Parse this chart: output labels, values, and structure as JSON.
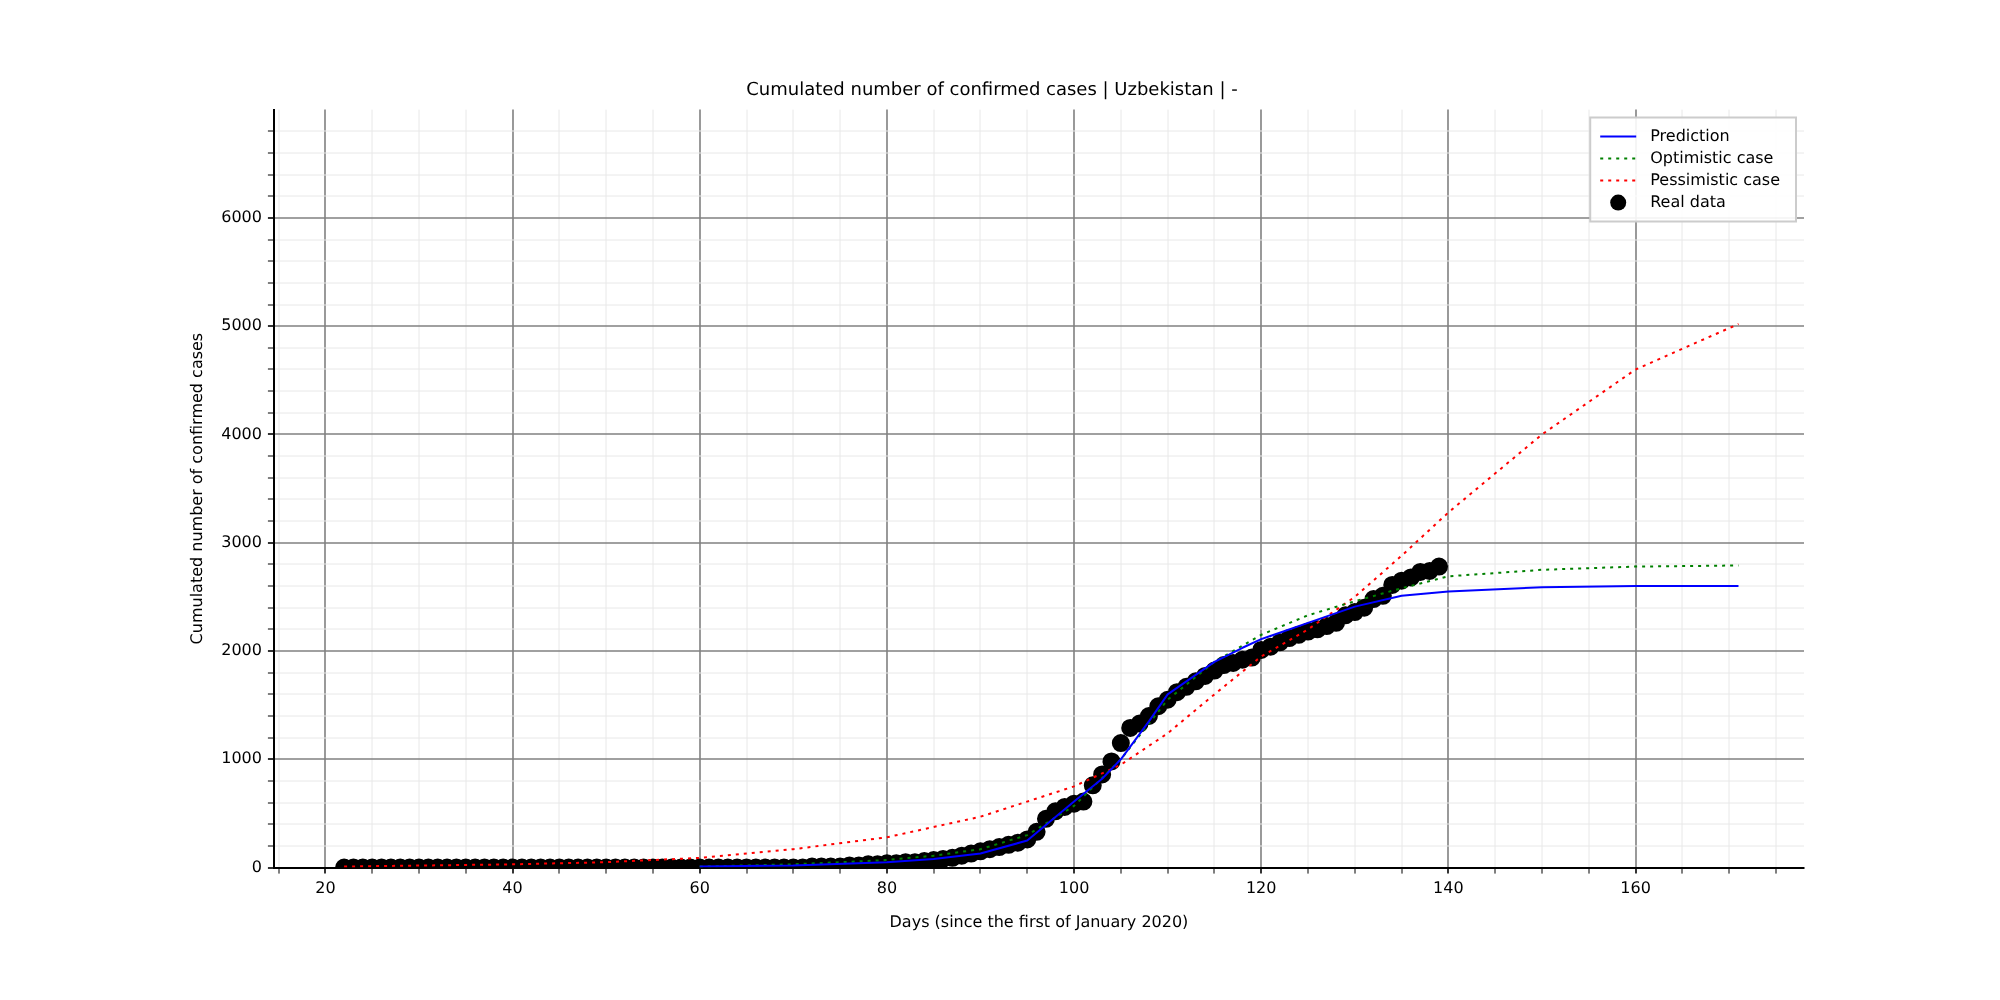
{
  "chart_data": {
    "type": "line",
    "title": "Cumulated number of confirmed cases | Uzbekistan | -",
    "xlabel": "Days (since the first of January 2020)",
    "ylabel": "Cumulated number of confirmed cases",
    "xlim": [
      14.5,
      178
    ],
    "ylim": [
      0,
      7000
    ],
    "xticks": [
      {
        "value": 15,
        "label": null
      },
      20,
      {
        "value": 25,
        "label": null
      },
      {
        "value": 30,
        "label": null
      },
      {
        "value": 35,
        "label": null
      },
      40,
      {
        "value": 45,
        "label": null
      },
      {
        "value": 50,
        "label": null
      },
      {
        "value": 55,
        "label": null
      },
      60,
      {
        "value": 65,
        "label": null
      },
      {
        "value": 70,
        "label": null
      },
      {
        "value": 75,
        "label": null
      },
      80,
      {
        "value": 85,
        "label": null
      },
      {
        "value": 90,
        "label": null
      },
      {
        "value": 95,
        "label": null
      },
      100,
      {
        "value": 105,
        "label": null
      },
      {
        "value": 110,
        "label": null
      },
      {
        "value": 115,
        "label": null
      },
      120,
      {
        "value": 125,
        "label": null
      },
      {
        "value": 130,
        "label": null
      },
      {
        "value": 135,
        "label": null
      },
      140,
      {
        "value": 145,
        "label": null
      },
      {
        "value": 150,
        "label": null
      },
      {
        "value": 155,
        "label": null
      },
      160,
      {
        "value": 165,
        "label": null
      },
      {
        "value": 170,
        "label": null
      },
      {
        "value": 175,
        "label": null
      }
    ],
    "yticks": [
      0,
      {
        "value": 200,
        "label": null
      },
      {
        "value": 400,
        "label": null
      },
      {
        "value": 600,
        "label": null
      },
      {
        "value": 800,
        "label": null
      },
      1000,
      {
        "value": 1200,
        "label": null
      },
      {
        "value": 1400,
        "label": null
      },
      {
        "value": 1600,
        "label": null
      },
      {
        "value": 1800,
        "label": null
      },
      2000,
      {
        "value": 2200,
        "label": null
      },
      {
        "value": 2400,
        "label": null
      },
      {
        "value": 2600,
        "label": null
      },
      {
        "value": 2800,
        "label": null
      },
      3000,
      {
        "value": 3200,
        "label": null
      },
      {
        "value": 3400,
        "label": null
      },
      {
        "value": 3600,
        "label": null
      },
      {
        "value": 3800,
        "label": null
      },
      4000,
      {
        "value": 4200,
        "label": null
      },
      {
        "value": 4400,
        "label": null
      },
      {
        "value": 4600,
        "label": null
      },
      {
        "value": 4800,
        "label": null
      },
      5000,
      {
        "value": 5200,
        "label": null
      },
      {
        "value": 5400,
        "label": null
      },
      {
        "value": 5600,
        "label": null
      },
      {
        "value": 5800,
        "label": null
      },
      6000,
      {
        "value": 6200,
        "label": null
      },
      {
        "value": 6400,
        "label": null
      },
      {
        "value": 6600,
        "label": null
      },
      {
        "value": 6800,
        "label": null
      }
    ],
    "grid": true,
    "legend": "top right",
    "series": [
      {
        "name": "Prediction",
        "type": "line",
        "color": "#0000ff",
        "line_style": "solid",
        "marker": "none",
        "x": [
          60,
          70,
          80,
          85,
          90,
          95,
          100,
          103,
          105,
          108,
          110,
          113,
          115,
          118,
          120,
          125,
          130,
          135,
          140,
          150,
          160,
          171
        ],
        "values": [
          10,
          20,
          50,
          80,
          130,
          250,
          610,
          820,
          1000,
          1350,
          1600,
          1780,
          1900,
          2030,
          2110,
          2260,
          2410,
          2510,
          2550,
          2590,
          2600,
          2600
        ]
      },
      {
        "name": "Optimistic case",
        "type": "line",
        "color": "#008000",
        "line_style": "dotted",
        "marker": "none",
        "x": [
          60,
          70,
          80,
          85,
          90,
          95,
          100,
          105,
          110,
          115,
          120,
          125,
          130,
          135,
          140,
          150,
          160,
          171
        ],
        "values": [
          10,
          30,
          70,
          110,
          170,
          300,
          570,
          1000,
          1550,
          1900,
          2150,
          2330,
          2460,
          2580,
          2690,
          2750,
          2780,
          2790
        ]
      },
      {
        "name": "Pessimistic case",
        "type": "line",
        "color": "#ff0000",
        "line_style": "dotted",
        "marker": "none",
        "x": [
          22,
          40,
          50,
          60,
          70,
          80,
          90,
          100,
          105,
          110,
          115,
          120,
          125,
          130,
          135,
          140,
          150,
          160,
          171
        ],
        "values": [
          10,
          30,
          50,
          90,
          170,
          280,
          470,
          750,
          950,
          1240,
          1600,
          1950,
          2200,
          2500,
          2880,
          3280,
          4000,
          4600,
          5020
        ]
      },
      {
        "name": "Real data",
        "type": "scatter",
        "color": "#000000",
        "marker": "circle",
        "x": [
          22,
          23,
          24,
          25,
          26,
          27,
          28,
          29,
          30,
          31,
          32,
          33,
          34,
          35,
          36,
          37,
          38,
          39,
          40,
          41,
          42,
          43,
          44,
          45,
          46,
          47,
          48,
          49,
          50,
          51,
          52,
          53,
          54,
          55,
          56,
          57,
          58,
          59,
          60,
          61,
          62,
          63,
          64,
          65,
          66,
          67,
          68,
          69,
          70,
          71,
          72,
          73,
          74,
          75,
          76,
          77,
          78,
          79,
          80,
          81,
          82,
          83,
          84,
          85,
          86,
          87,
          88,
          89,
          90,
          91,
          92,
          93,
          94,
          95,
          96,
          97,
          98,
          99,
          100,
          101,
          102,
          103,
          104,
          105,
          106,
          107,
          108,
          109,
          110,
          111,
          112,
          113,
          114,
          115,
          116,
          117,
          118,
          119,
          120,
          121,
          122,
          123,
          124,
          125,
          126,
          127,
          128,
          129,
          130,
          131,
          132,
          133,
          134,
          135,
          136,
          137,
          138,
          139
        ],
        "values": [
          0,
          0,
          0,
          0,
          0,
          0,
          0,
          0,
          0,
          0,
          0,
          0,
          0,
          0,
          0,
          0,
          0,
          0,
          0,
          0,
          0,
          0,
          0,
          0,
          0,
          0,
          0,
          0,
          0,
          0,
          0,
          0,
          0,
          0,
          0,
          0,
          0,
          0,
          0,
          0,
          0,
          0,
          0,
          0,
          0,
          0,
          0,
          0,
          0,
          0,
          10,
          10,
          10,
          10,
          20,
          20,
          30,
          30,
          40,
          40,
          50,
          50,
          60,
          70,
          80,
          90,
          110,
          130,
          150,
          170,
          190,
          210,
          230,
          260,
          330,
          450,
          520,
          560,
          590,
          610,
          760,
          860,
          980,
          1150,
          1290,
          1330,
          1400,
          1490,
          1550,
          1620,
          1670,
          1720,
          1770,
          1820,
          1870,
          1890,
          1920,
          1940,
          2010,
          2040,
          2080,
          2120,
          2150,
          2180,
          2200,
          2230,
          2260,
          2330,
          2360,
          2400,
          2480,
          2510,
          2610,
          2650,
          2680,
          2730,
          2740,
          2780
        ]
      }
    ]
  }
}
